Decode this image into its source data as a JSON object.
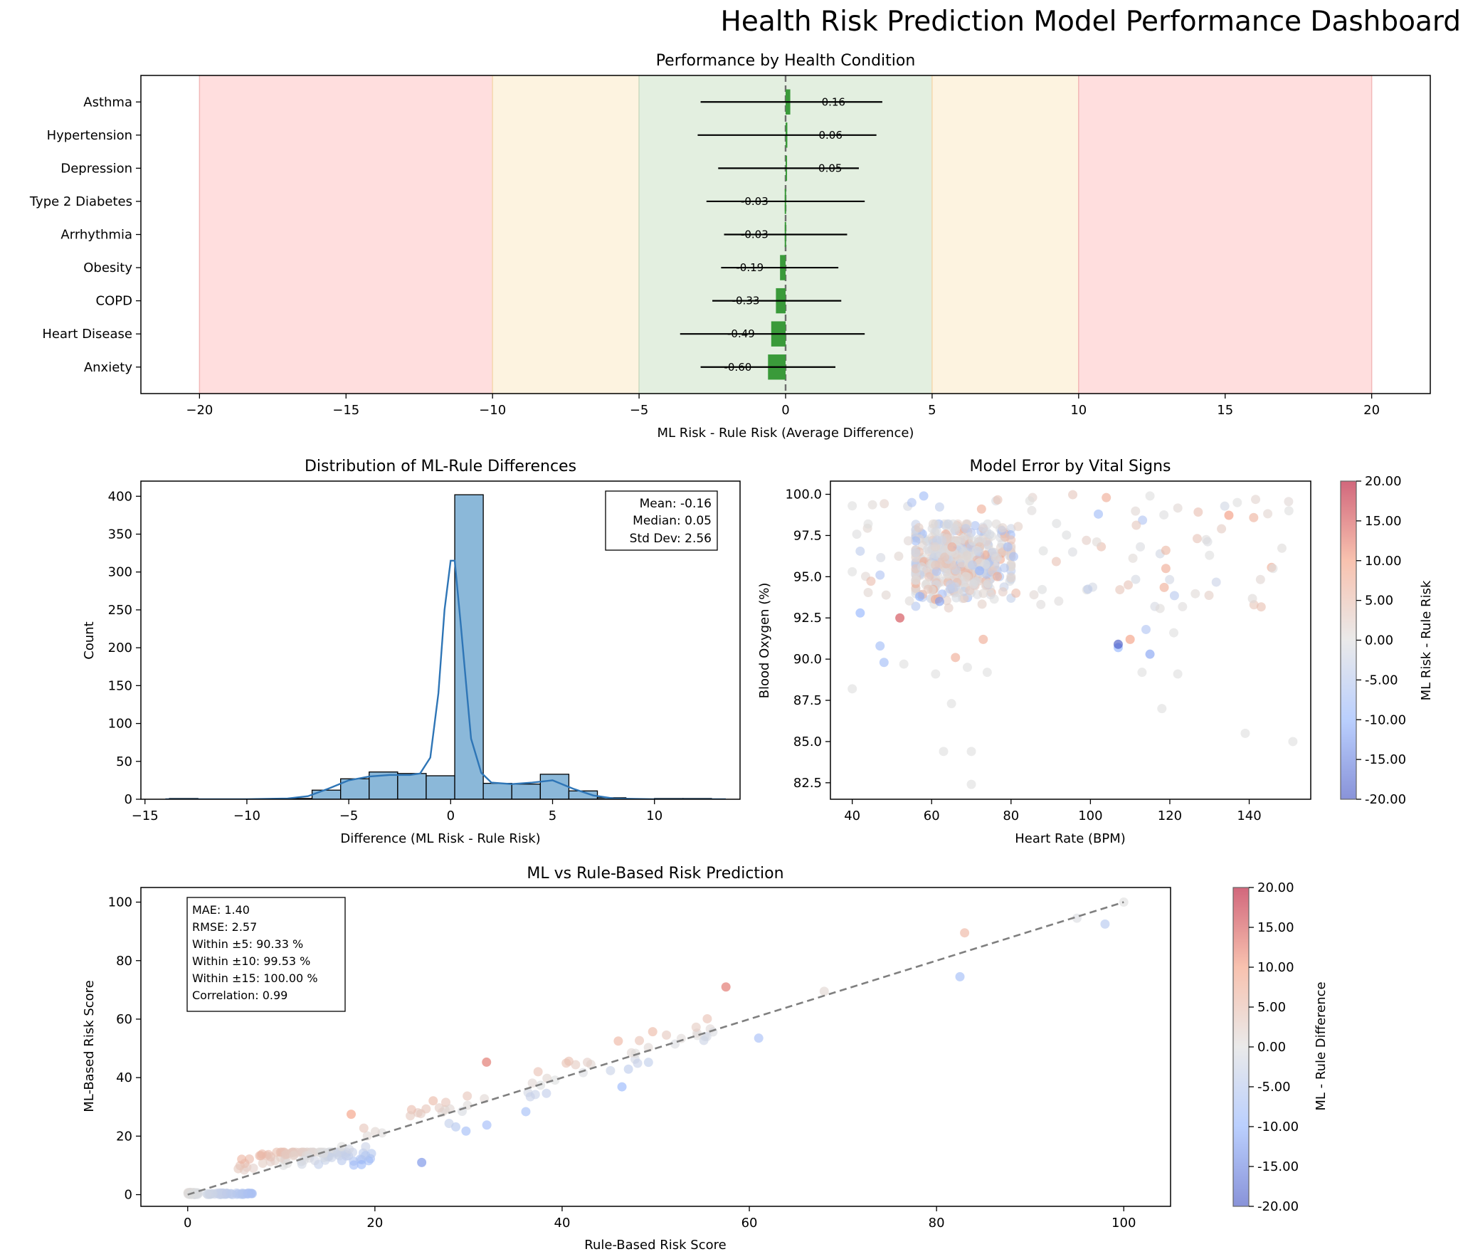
{
  "figure": {
    "title": "Health Risk Prediction Model Performance Dashboard"
  },
  "colors": {
    "bar": "#3a9a3a",
    "band_red": "#ffdede",
    "band_yellow": "#fdf3e0",
    "band_green": "#e3efe0",
    "hist": "#8bb8d9",
    "kde": "#2e75b6",
    "diag": "#7f7f7f"
  },
  "chart_data": [
    {
      "type": "bar",
      "orientation": "horizontal",
      "title": "Performance by Health Condition",
      "xlabel": "ML Risk - Rule Risk (Average Difference)",
      "xlim": [
        -22,
        22
      ],
      "xticks": [
        -20,
        -15,
        -10,
        -5,
        0,
        5,
        10,
        15,
        20
      ],
      "categories": [
        "Asthma",
        "Hypertension",
        "Depression",
        "Type 2 Diabetes",
        "Arrhythmia",
        "Obesity",
        "COPD",
        "Heart Disease",
        "Anxiety"
      ],
      "values": [
        0.16,
        0.06,
        0.05,
        -0.03,
        -0.03,
        -0.19,
        -0.33,
        -0.49,
        -0.6
      ],
      "labels": [
        "0.16",
        "0.06",
        "0.05",
        "-0.03",
        "-0.03",
        "-0.19",
        "-0.33",
        "-0.49",
        "-0.60"
      ],
      "error_low": [
        -2.9,
        -3.0,
        -2.3,
        -2.7,
        -2.1,
        -2.2,
        -2.5,
        -3.6,
        -2.9
      ],
      "error_high": [
        3.3,
        3.1,
        2.5,
        2.7,
        2.1,
        1.8,
        1.9,
        2.7,
        1.7
      ],
      "bands": [
        {
          "from": -20,
          "to": -10,
          "level": "red"
        },
        {
          "from": -10,
          "to": -5,
          "level": "yellow"
        },
        {
          "from": -5,
          "to": 5,
          "level": "green"
        },
        {
          "from": 5,
          "to": 10,
          "level": "yellow"
        },
        {
          "from": 10,
          "to": 20,
          "level": "red"
        }
      ]
    },
    {
      "type": "histogram",
      "title": "Distribution of ML-Rule Differences",
      "xlabel": "Difference (ML Risk - Rule Risk)",
      "ylabel": "Count",
      "xlim": [
        -15.2,
        14.2
      ],
      "ylim": [
        0,
        420
      ],
      "xticks": [
        -15,
        -10,
        -5,
        0,
        5,
        10
      ],
      "yticks": [
        0,
        50,
        100,
        150,
        200,
        250,
        300,
        350,
        400
      ],
      "bin_edges": [
        -13.8,
        -12.4,
        -11.0,
        -9.6,
        -8.2,
        -6.8,
        -5.4,
        -4.0,
        -2.6,
        -1.2,
        0.2,
        1.6,
        3.0,
        4.4,
        5.8,
        7.2,
        8.6,
        10.0,
        11.4,
        12.8
      ],
      "counts": [
        1,
        0,
        0,
        0,
        1,
        12,
        27,
        36,
        34,
        31,
        402,
        21,
        20,
        33,
        11,
        2,
        0,
        1,
        1
      ],
      "kde_x": [
        -14,
        -10,
        -8,
        -7,
        -6,
        -5,
        -4,
        -3,
        -2,
        -1.5,
        -1,
        -0.6,
        -0.3,
        0,
        0.2,
        0.5,
        0.8,
        1,
        1.5,
        2,
        3,
        4,
        5,
        6,
        7,
        8,
        10,
        13.5
      ],
      "kde_y": [
        0,
        0,
        1,
        4,
        14,
        25,
        30,
        32,
        32,
        34,
        55,
        140,
        250,
        315,
        315,
        230,
        140,
        80,
        35,
        22,
        20,
        22,
        25,
        14,
        5,
        1,
        0,
        0
      ],
      "stats": [
        "Mean: -0.16",
        "Median: 0.05",
        "Std Dev: 2.56"
      ]
    },
    {
      "type": "scatter",
      "title": "Model Error by Vital Signs",
      "xlabel": "Heart Rate (BPM)",
      "ylabel": "Blood Oxygen (%)",
      "xlim": [
        34.5,
        155.5
      ],
      "ylim": [
        81.5,
        100.8
      ],
      "xticks": [
        40,
        60,
        80,
        100,
        120,
        140
      ],
      "yticks": [
        82.5,
        85.0,
        87.5,
        90.0,
        92.5,
        95.0,
        97.5,
        100.0
      ],
      "colorbar": {
        "label": "ML Risk - Rule Risk",
        "min": -20,
        "max": 20,
        "ticks": [
          "20.00",
          "15.00",
          "10.00",
          "5.00",
          "0.00",
          "-5.00",
          "-10.00",
          "-15.00",
          "-20.00"
        ]
      },
      "points_seeded": true
    },
    {
      "type": "scatter",
      "title": "ML vs Rule-Based Risk Prediction",
      "xlabel": "Rule-Based Risk Score",
      "ylabel": "ML-Based Risk Score",
      "xlim": [
        -5,
        105
      ],
      "ylim": [
        -4,
        105
      ],
      "xticks": [
        0,
        20,
        40,
        60,
        80,
        100
      ],
      "yticks": [
        0,
        20,
        40,
        60,
        80,
        100
      ],
      "stats": [
        "MAE: 1.40",
        "RMSE: 2.57",
        "Within ±5: 90.33 %",
        "Within ±10: 99.53 %",
        "Within ±15: 100.00 %",
        "Correlation: 0.99"
      ],
      "colorbar": {
        "label": "ML - Rule Difference",
        "min": -20,
        "max": 20,
        "ticks": [
          "20.00",
          "15.00",
          "10.00",
          "5.00",
          "0.00",
          "-5.00",
          "-10.00",
          "-15.00",
          "-20.00"
        ]
      },
      "highlights": [
        {
          "x": 83,
          "y": 89.5
        },
        {
          "x": 57.5,
          "y": 71
        },
        {
          "x": 82.5,
          "y": 74.5
        },
        {
          "x": 68,
          "y": 69.5
        },
        {
          "x": 95,
          "y": 94.5
        },
        {
          "x": 98,
          "y": 92.5
        },
        {
          "x": 100,
          "y": 100
        },
        {
          "x": 61,
          "y": 53.5
        },
        {
          "x": 46,
          "y": 52.5
        },
        {
          "x": 25,
          "y": 11
        }
      ]
    }
  ]
}
